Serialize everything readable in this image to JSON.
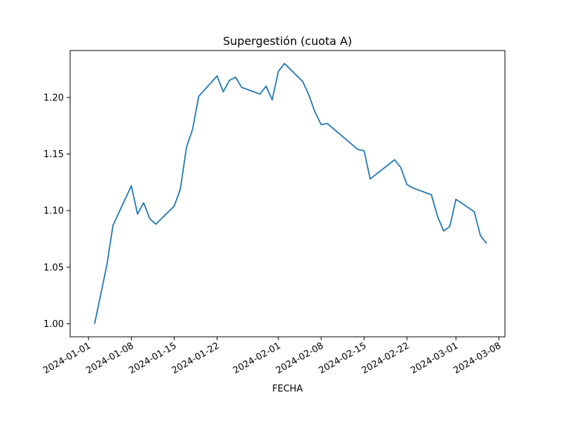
{
  "chart_data": {
    "type": "line",
    "title": "Supergestión  (cuota A)",
    "xlabel": "FECHA",
    "ylabel": "",
    "xlim": [
      "2023-12-29",
      "2024-03-09"
    ],
    "ylim": [
      0.9885,
      1.2415
    ],
    "grid": false,
    "x_ticks": [
      "2024-01-01",
      "2024-01-08",
      "2024-01-15",
      "2024-01-22",
      "2024-02-01",
      "2024-02-08",
      "2024-02-15",
      "2024-02-22",
      "2024-03-01",
      "2024-03-08"
    ],
    "y_ticks": [
      "1.00",
      "1.05",
      "1.10",
      "1.15",
      "1.20"
    ],
    "line_color": "#1f77b4",
    "series": [
      {
        "x": [
          "2024-01-02",
          "2024-01-03",
          "2024-01-04",
          "2024-01-05",
          "2024-01-08",
          "2024-01-09",
          "2024-01-10",
          "2024-01-11",
          "2024-01-12",
          "2024-01-15",
          "2024-01-16",
          "2024-01-17",
          "2024-01-18",
          "2024-01-19",
          "2024-01-22",
          "2024-01-23",
          "2024-01-24",
          "2024-01-25",
          "2024-01-26",
          "2024-01-29",
          "2024-01-30",
          "2024-01-31",
          "2024-02-01",
          "2024-02-02",
          "2024-02-05",
          "2024-02-06",
          "2024-02-07",
          "2024-02-08",
          "2024-02-09",
          "2024-02-14",
          "2024-02-15",
          "2024-02-16",
          "2024-02-20",
          "2024-02-21",
          "2024-02-22",
          "2024-02-23",
          "2024-02-26",
          "2024-02-27",
          "2024-02-28",
          "2024-02-29",
          "2024-03-01",
          "2024-03-04",
          "2024-03-05",
          "2024-03-06"
        ],
        "values": [
          1.0,
          1.026,
          1.052,
          1.087,
          1.122,
          1.097,
          1.107,
          1.093,
          1.088,
          1.104,
          1.119,
          1.156,
          1.172,
          1.201,
          1.219,
          1.205,
          1.215,
          1.218,
          1.209,
          1.203,
          1.21,
          1.198,
          1.223,
          1.23,
          1.214,
          1.202,
          1.187,
          1.176,
          1.177,
          1.154,
          1.153,
          1.128,
          1.145,
          1.138,
          1.123,
          1.12,
          1.114,
          1.095,
          1.082,
          1.086,
          1.11,
          1.099,
          1.078,
          1.071
        ]
      }
    ]
  }
}
